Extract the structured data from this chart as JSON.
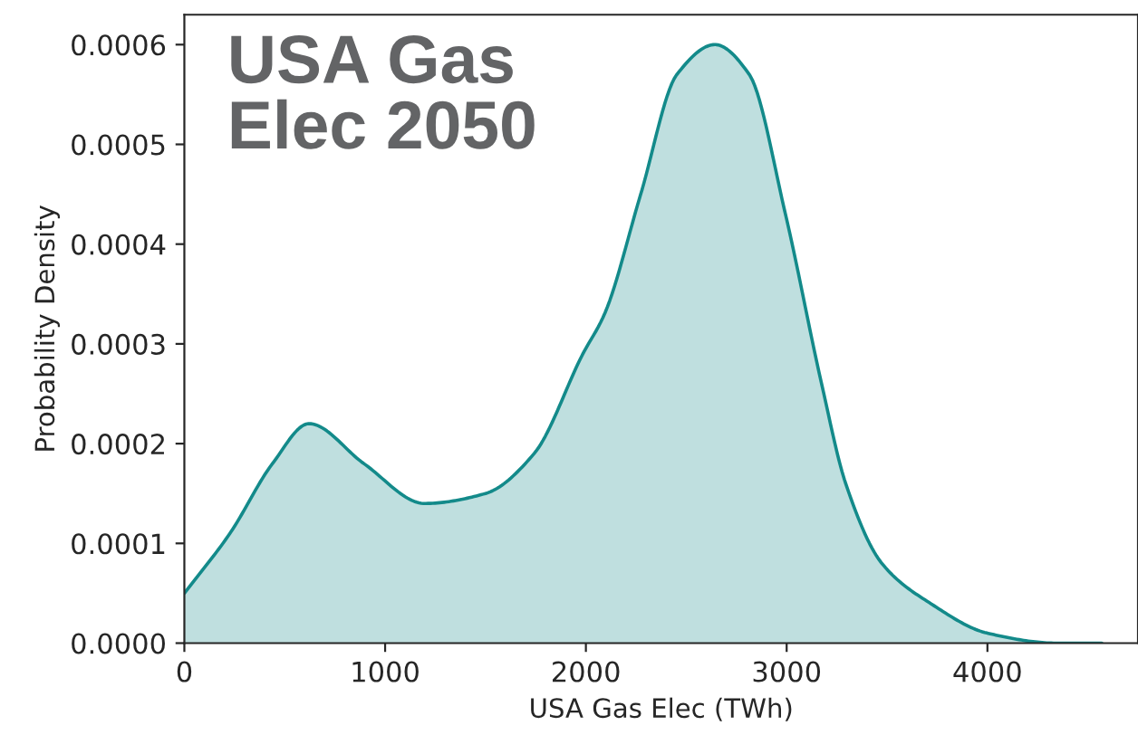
{
  "chart_data": {
    "type": "area",
    "title": "USA Gas\nElec 2050",
    "xlabel": "USA Gas Elec (TWh)",
    "ylabel": "Probability Density",
    "x": [
      0,
      227,
      439,
      621,
      894,
      1197,
      1500,
      1742,
      1985,
      2093,
      2273,
      2453,
      2643,
      2814,
      2994,
      3174,
      3294,
      3474,
      3715,
      4000,
      4345,
      4570
    ],
    "series": [
      {
        "color": "#138a8a",
        "values": [
          5e-05,
          0.00011,
          0.00018,
          0.00022,
          0.00018,
          0.00014,
          0.00015,
          0.00019,
          0.00029,
          0.00033,
          0.00045,
          0.00057,
          0.0006,
          0.00057,
          0.00043,
          0.00026,
          0.00016,
          8e-05,
          4e-05,
          1e-05,
          0,
          0
        ]
      }
    ],
    "xlim": [
      0,
      4750
    ],
    "xticks": [
      0,
      1000,
      2000,
      3000,
      4000
    ],
    "ylim": [
      0,
      0.00063
    ],
    "yticks": [
      {
        "value": 0,
        "label": "0.0000"
      },
      {
        "value": 0.0001,
        "label": "0.0001"
      },
      {
        "value": 0.0002,
        "label": "0.0002"
      },
      {
        "value": 0.0003,
        "label": "0.0003"
      },
      {
        "value": 0.0004,
        "label": "0.0004"
      },
      {
        "value": 0.0005,
        "label": "0.0005"
      },
      {
        "value": 0.0006,
        "label": "0.0006"
      }
    ],
    "grid": false
  }
}
